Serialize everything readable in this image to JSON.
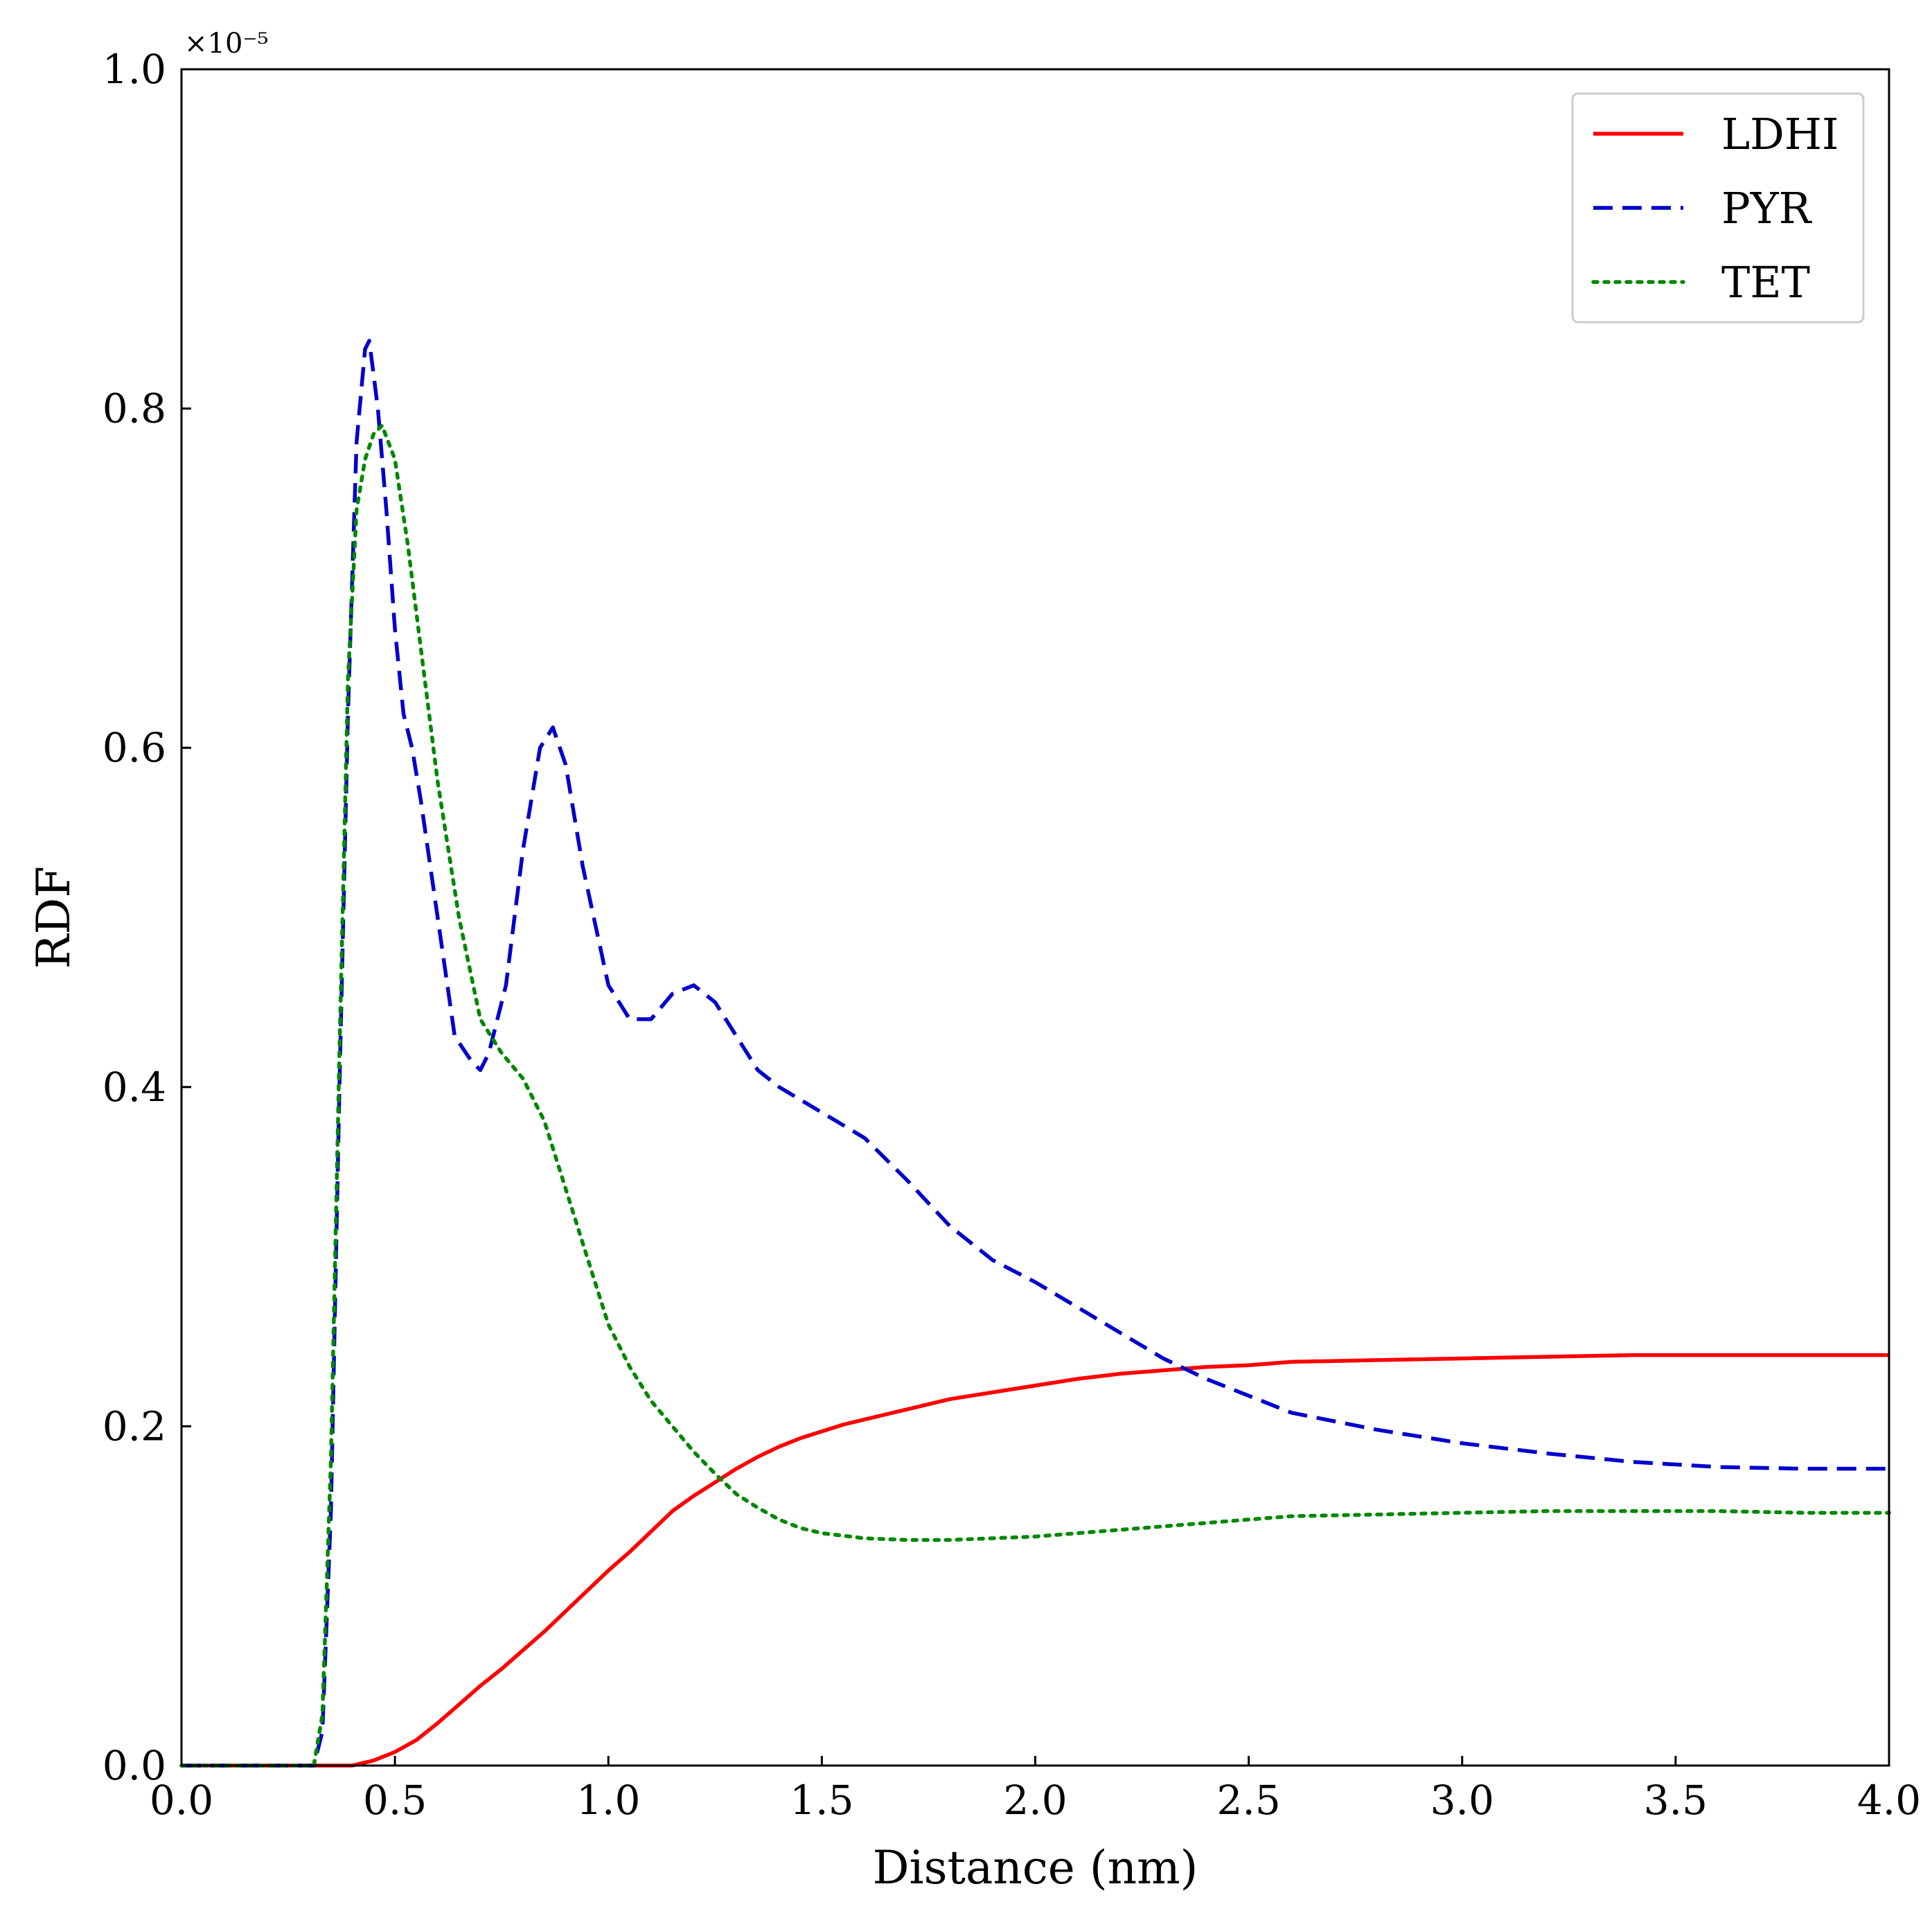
{
  "chart_data": {
    "type": "line",
    "xlabel": "Distance (nm)",
    "ylabel": "RDF",
    "y_scale_multiplier": "×10⁻⁵",
    "xlim": [
      0.0,
      4.0
    ],
    "ylim": [
      0.0,
      1.0
    ],
    "xticks": [
      "0.0",
      "0.5",
      "1.0",
      "1.5",
      "2.0",
      "2.5",
      "3.0",
      "3.5",
      "4.0"
    ],
    "yticks": [
      "0.0",
      "0.2",
      "0.4",
      "0.6",
      "0.8",
      "1.0"
    ],
    "grid": false,
    "legend_position": "top-right",
    "series": [
      {
        "name": "LDHI",
        "color": "#ff0000",
        "style": "solid",
        "x": [
          0.0,
          0.3,
          0.4,
          0.45,
          0.5,
          0.55,
          0.6,
          0.65,
          0.7,
          0.75,
          0.8,
          0.85,
          0.9,
          0.95,
          1.0,
          1.05,
          1.1,
          1.15,
          1.2,
          1.25,
          1.3,
          1.35,
          1.4,
          1.45,
          1.5,
          1.55,
          1.6,
          1.7,
          1.8,
          1.9,
          2.0,
          2.1,
          2.2,
          2.3,
          2.4,
          2.5,
          2.6,
          2.8,
          3.0,
          3.2,
          3.4,
          3.6,
          3.8,
          4.0
        ],
        "y": [
          0.0,
          0.0,
          0.0,
          0.003,
          0.008,
          0.015,
          0.025,
          0.036,
          0.047,
          0.057,
          0.068,
          0.079,
          0.091,
          0.103,
          0.115,
          0.126,
          0.138,
          0.15,
          0.159,
          0.167,
          0.175,
          0.182,
          0.188,
          0.193,
          0.197,
          0.201,
          0.204,
          0.21,
          0.216,
          0.22,
          0.224,
          0.228,
          0.231,
          0.233,
          0.235,
          0.236,
          0.238,
          0.239,
          0.24,
          0.241,
          0.242,
          0.242,
          0.242,
          0.242
        ]
      },
      {
        "name": "PYR",
        "color": "#0000cc",
        "style": "dashed",
        "x": [
          0.0,
          0.31,
          0.33,
          0.35,
          0.37,
          0.39,
          0.41,
          0.43,
          0.44,
          0.46,
          0.48,
          0.5,
          0.52,
          0.54,
          0.56,
          0.6,
          0.64,
          0.68,
          0.7,
          0.72,
          0.76,
          0.8,
          0.84,
          0.87,
          0.9,
          0.94,
          1.0,
          1.05,
          1.1,
          1.15,
          1.2,
          1.25,
          1.3,
          1.35,
          1.4,
          1.5,
          1.6,
          1.7,
          1.8,
          1.9,
          2.0,
          2.1,
          2.2,
          2.3,
          2.4,
          2.5,
          2.6,
          2.8,
          3.0,
          3.2,
          3.4,
          3.6,
          3.8,
          4.0
        ],
        "y": [
          0.0,
          0.0,
          0.02,
          0.15,
          0.4,
          0.62,
          0.78,
          0.835,
          0.84,
          0.8,
          0.74,
          0.67,
          0.62,
          0.6,
          0.57,
          0.5,
          0.43,
          0.415,
          0.41,
          0.42,
          0.46,
          0.54,
          0.6,
          0.612,
          0.59,
          0.53,
          0.46,
          0.44,
          0.44,
          0.455,
          0.46,
          0.45,
          0.43,
          0.41,
          0.4,
          0.385,
          0.37,
          0.345,
          0.318,
          0.298,
          0.285,
          0.27,
          0.255,
          0.24,
          0.228,
          0.218,
          0.208,
          0.198,
          0.19,
          0.184,
          0.179,
          0.176,
          0.175,
          0.175
        ]
      },
      {
        "name": "TET",
        "color": "#008800",
        "style": "dotted",
        "x": [
          0.0,
          0.31,
          0.33,
          0.35,
          0.37,
          0.39,
          0.41,
          0.43,
          0.45,
          0.47,
          0.5,
          0.53,
          0.56,
          0.6,
          0.65,
          0.7,
          0.75,
          0.8,
          0.85,
          0.9,
          0.95,
          1.0,
          1.05,
          1.1,
          1.15,
          1.2,
          1.25,
          1.3,
          1.35,
          1.4,
          1.45,
          1.5,
          1.6,
          1.7,
          1.8,
          1.9,
          2.0,
          2.1,
          2.2,
          2.3,
          2.4,
          2.5,
          2.6,
          2.8,
          3.0,
          3.2,
          3.4,
          3.6,
          3.8,
          4.0
        ],
        "y": [
          0.0,
          0.0,
          0.03,
          0.18,
          0.42,
          0.64,
          0.74,
          0.77,
          0.785,
          0.79,
          0.77,
          0.72,
          0.66,
          0.58,
          0.5,
          0.44,
          0.42,
          0.405,
          0.38,
          0.34,
          0.3,
          0.26,
          0.235,
          0.215,
          0.2,
          0.185,
          0.172,
          0.16,
          0.152,
          0.145,
          0.14,
          0.137,
          0.134,
          0.133,
          0.133,
          0.134,
          0.135,
          0.137,
          0.139,
          0.141,
          0.143,
          0.145,
          0.147,
          0.148,
          0.149,
          0.15,
          0.15,
          0.15,
          0.149,
          0.149
        ]
      }
    ]
  }
}
